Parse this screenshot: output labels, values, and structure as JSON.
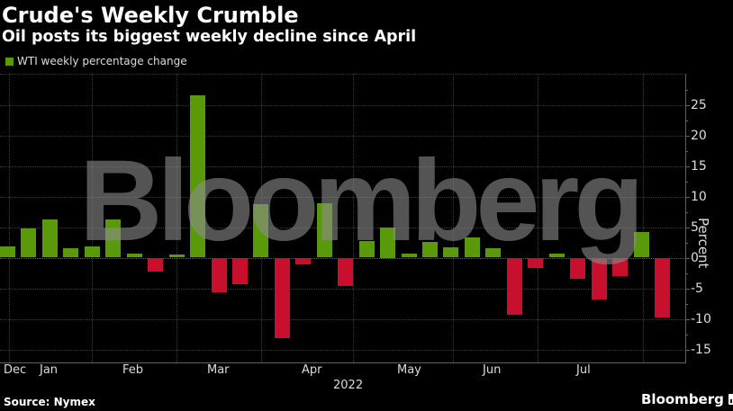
{
  "header": {
    "title": "Crude's Weekly Crumble",
    "subtitle": "Oil posts its biggest weekly decline since April"
  },
  "legend": {
    "label": "WTI weekly percentage change",
    "color": "#5a9a0a"
  },
  "colors": {
    "positive": "#5a9a0a",
    "negative": "#c8102e",
    "axis": "#4d7a12",
    "background": "#000000"
  },
  "watermark": "Bloomberg",
  "footer": {
    "source": "Source: Nymex",
    "brand": "Bloomberg"
  },
  "axis": {
    "y_title": "Percent",
    "y_ticks": [
      "25",
      "20",
      "15",
      "10",
      "5",
      "0",
      "-5",
      "-10",
      "-15"
    ],
    "x_ticks": [
      "Dec",
      "Jan",
      "Feb",
      "Mar",
      "Apr",
      "May",
      "Jun",
      "Jul"
    ],
    "x_year": "2022"
  },
  "chart_data": {
    "type": "bar",
    "title": "Crude's Weekly Crumble",
    "subtitle": "Oil posts its biggest weekly decline since April",
    "xlabel": "2022",
    "ylabel": "Percent",
    "ylim": [
      -17,
      30
    ],
    "yticks": [
      -15,
      -10,
      -5,
      0,
      5,
      10,
      15,
      20,
      25
    ],
    "grid": true,
    "legend": [
      "WTI weekly percentage change"
    ],
    "legend_position": "top-left",
    "x_tick_labels": [
      "Dec",
      "Jan",
      "Feb",
      "Mar",
      "Apr",
      "May",
      "Jun",
      "Jul"
    ],
    "series": [
      {
        "name": "WTI weekly percentage change",
        "values": [
          1.8,
          4.8,
          6.2,
          1.5,
          1.9,
          6.3,
          0.7,
          -2.3,
          0.5,
          26.5,
          -5.6,
          -4.3,
          8.8,
          -13.1,
          -1.1,
          8.9,
          -4.6,
          2.7,
          5.0,
          0.6,
          2.6,
          1.7,
          3.3,
          1.5,
          -9.3,
          -1.7,
          0.6,
          -3.4,
          -6.9,
          -3.0,
          4.2,
          -9.8
        ]
      }
    ],
    "source": "Source: Nymex"
  }
}
